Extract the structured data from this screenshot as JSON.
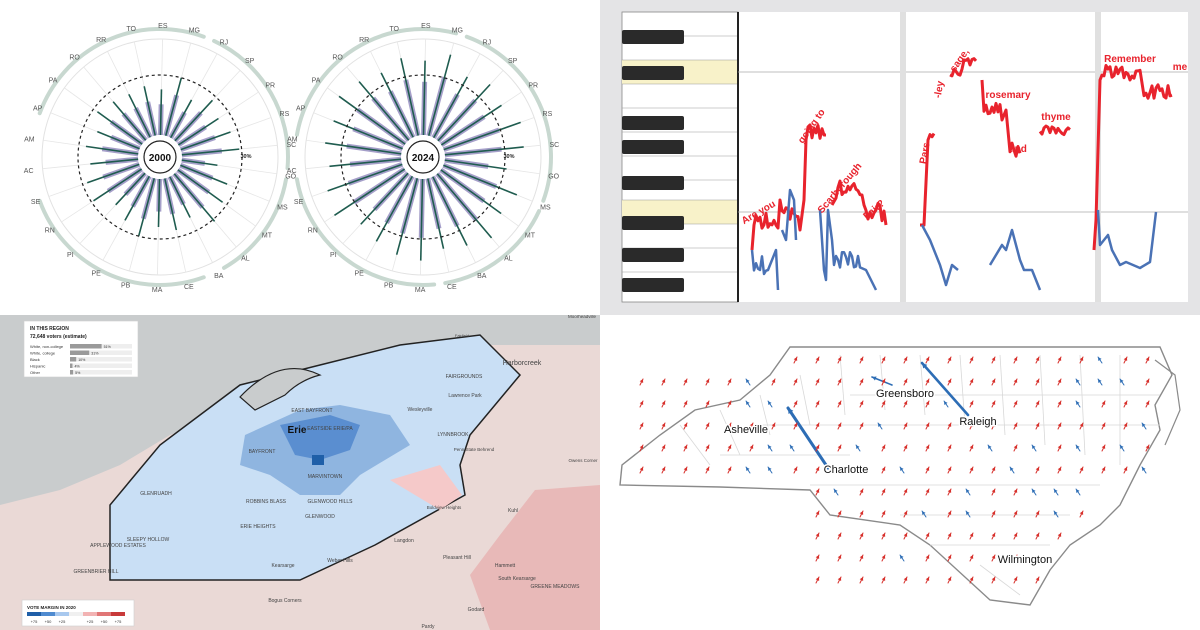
{
  "palette": {
    "radial_bar": "#a59fc9",
    "radial_stem": "#1f5c4f",
    "radial_ring": "#c8d8d0",
    "pitch_red": "#e8232d",
    "pitch_blue": "#4a72b5",
    "key_highlight": "#f8f2c9",
    "map_dem_light": "#c9dff5",
    "map_dem_dark": "#1f5fa8",
    "map_rep": "#f5c9c9",
    "nc_arrow_red": "#d7302b",
    "nc_arrow_blue": "#2d6db5"
  },
  "chart_data": [
    {
      "type": "radial-bar",
      "panel": "brazil-states",
      "charts": [
        {
          "center_label": "2000"
        },
        {
          "center_label": "2024"
        }
      ],
      "reference_label": "30%",
      "categories": [
        "TO",
        "ES",
        "MG",
        "RJ",
        "SP",
        "PR",
        "RS",
        "SC",
        "GO",
        "MS",
        "MT",
        "AL",
        "BA",
        "CE",
        "MA",
        "PB",
        "PE",
        "PI",
        "RN",
        "SE",
        "AC",
        "AM",
        "AP",
        "PA",
        "RO",
        "RR"
      ],
      "series": [
        {
          "values_2000": [
            0.42,
            0.38,
            0.5,
            0.36,
            0.46,
            0.4,
            0.44,
            0.48,
            0.3,
            0.42,
            0.46,
            0.52,
            0.38,
            0.44,
            0.4,
            0.5,
            0.42,
            0.36,
            0.48,
            0.46,
            0.4,
            0.44,
            0.38,
            0.46,
            0.42,
            0.4
          ]
        },
        {
          "values_2024": [
            0.66,
            0.62,
            0.7,
            0.58,
            0.64,
            0.6,
            0.68,
            0.66,
            0.52,
            0.66,
            0.62,
            0.7,
            0.64,
            0.6,
            0.68,
            0.66,
            0.62,
            0.58,
            0.7,
            0.66,
            0.6,
            0.64,
            0.62,
            0.68,
            0.64,
            0.6
          ]
        }
      ]
    },
    {
      "type": "line",
      "panel": "pitch-contour",
      "lyrics": [
        "Are you",
        "going to",
        "Scarborough",
        "Fair?",
        "Pars-",
        "-ley",
        "sage,",
        "rosemary",
        "and",
        "thyme",
        "Remember",
        "me"
      ]
    },
    {
      "type": "map",
      "panel": "erie-region",
      "box_title": "IN THIS REGION",
      "box_voters": "72,648 voters (estimate)",
      "demographics": [
        {
          "label": "White, non-college",
          "pct": "51%",
          "value": 51
        },
        {
          "label": "White, college",
          "pct": "31%",
          "value": 31
        },
        {
          "label": "Black",
          "pct": "10%",
          "value": 10
        },
        {
          "label": "Hispanic",
          "pct": "4%",
          "value": 4
        },
        {
          "label": "Other",
          "pct": "5%",
          "value": 5
        }
      ],
      "legend_title": "VOTE MARGIN IN 2020",
      "legend_ticks": [
        "+75",
        "+50",
        "+25",
        "",
        "+25",
        "+50",
        "+75"
      ],
      "places": [
        "Erie",
        "EAST BAYFRONT",
        "EASTSIDE ERIE/PA",
        "BAYFRONT",
        "MARVINTOWN",
        "ROBBINS BLASS",
        "GLENWOOD HILLS",
        "GLENWOOD",
        "ERIE HEIGHTS",
        "GLENRUADH",
        "SLEEPY HOLLOW",
        "APPLEWOOD ESTATES",
        "GREENBRIER HILL",
        "Harborcreek",
        "Lawrence Park",
        "Wesleyville",
        "LYNNBROOK",
        "Penn State Behrend",
        "FAIRGROUNDS",
        "Fairfield",
        "Moorheadville",
        "Owens Corner",
        "Kuhl",
        "Boldview Heights",
        "Langdon",
        "Weber Hills",
        "Pleasant Hill",
        "Hammett",
        "Kearsarge",
        "South Kearsarge",
        "Bogus Corners",
        "GREENE MEADOWS",
        "Godard",
        "Pardy"
      ]
    },
    {
      "type": "map",
      "panel": "north-carolina-shift",
      "cities": [
        "Asheville",
        "Charlotte",
        "Greensboro",
        "Raleigh",
        "Wilmington"
      ]
    }
  ]
}
